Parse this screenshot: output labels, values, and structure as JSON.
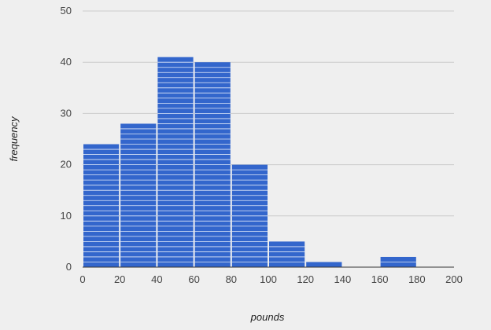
{
  "chart_data": {
    "type": "bar",
    "subtype": "histogram",
    "title": "",
    "xlabel": "pounds",
    "ylabel": "frequency",
    "bins": [
      {
        "start": 0,
        "end": 20,
        "count": 24
      },
      {
        "start": 20,
        "end": 40,
        "count": 28
      },
      {
        "start": 40,
        "end": 60,
        "count": 41
      },
      {
        "start": 60,
        "end": 80,
        "count": 40
      },
      {
        "start": 80,
        "end": 100,
        "count": 20
      },
      {
        "start": 100,
        "end": 120,
        "count": 5
      },
      {
        "start": 120,
        "end": 140,
        "count": 1
      },
      {
        "start": 140,
        "end": 160,
        "count": 0
      },
      {
        "start": 160,
        "end": 180,
        "count": 2
      },
      {
        "start": 180,
        "end": 200,
        "count": 0
      }
    ],
    "xlim": [
      0,
      200
    ],
    "ylim": [
      0,
      50
    ],
    "xticks": [
      0,
      20,
      40,
      60,
      80,
      100,
      120,
      140,
      160,
      180,
      200
    ],
    "yticks": [
      0,
      10,
      20,
      30,
      40,
      50
    ],
    "grid": true,
    "legend": "none",
    "colors": {
      "bar": "#3366cc",
      "bar_stripe": "#ffffff",
      "background": "#efefef",
      "grid": "#cccccc",
      "baseline": "#333333"
    }
  }
}
